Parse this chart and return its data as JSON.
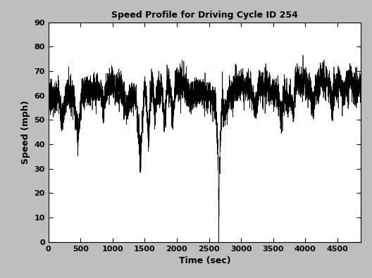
{
  "title": "Speed Profile for Driving Cycle ID 254",
  "xlabel": "Time (sec)",
  "ylabel": "Speed (mph)",
  "xlim": [
    0,
    4866
  ],
  "ylim": [
    0,
    90
  ],
  "xticks": [
    0,
    500,
    1000,
    1500,
    2000,
    2500,
    3000,
    3500,
    4000,
    4500
  ],
  "yticks": [
    0,
    10,
    20,
    30,
    40,
    50,
    60,
    70,
    80,
    90
  ],
  "line_color": "#000000",
  "background_color": "#bebebe",
  "axes_background": "#ffffff",
  "title_fontsize": 9,
  "label_fontsize": 9,
  "tick_fontsize": 8,
  "total_seconds": 4866,
  "avg_speed": 60.4
}
